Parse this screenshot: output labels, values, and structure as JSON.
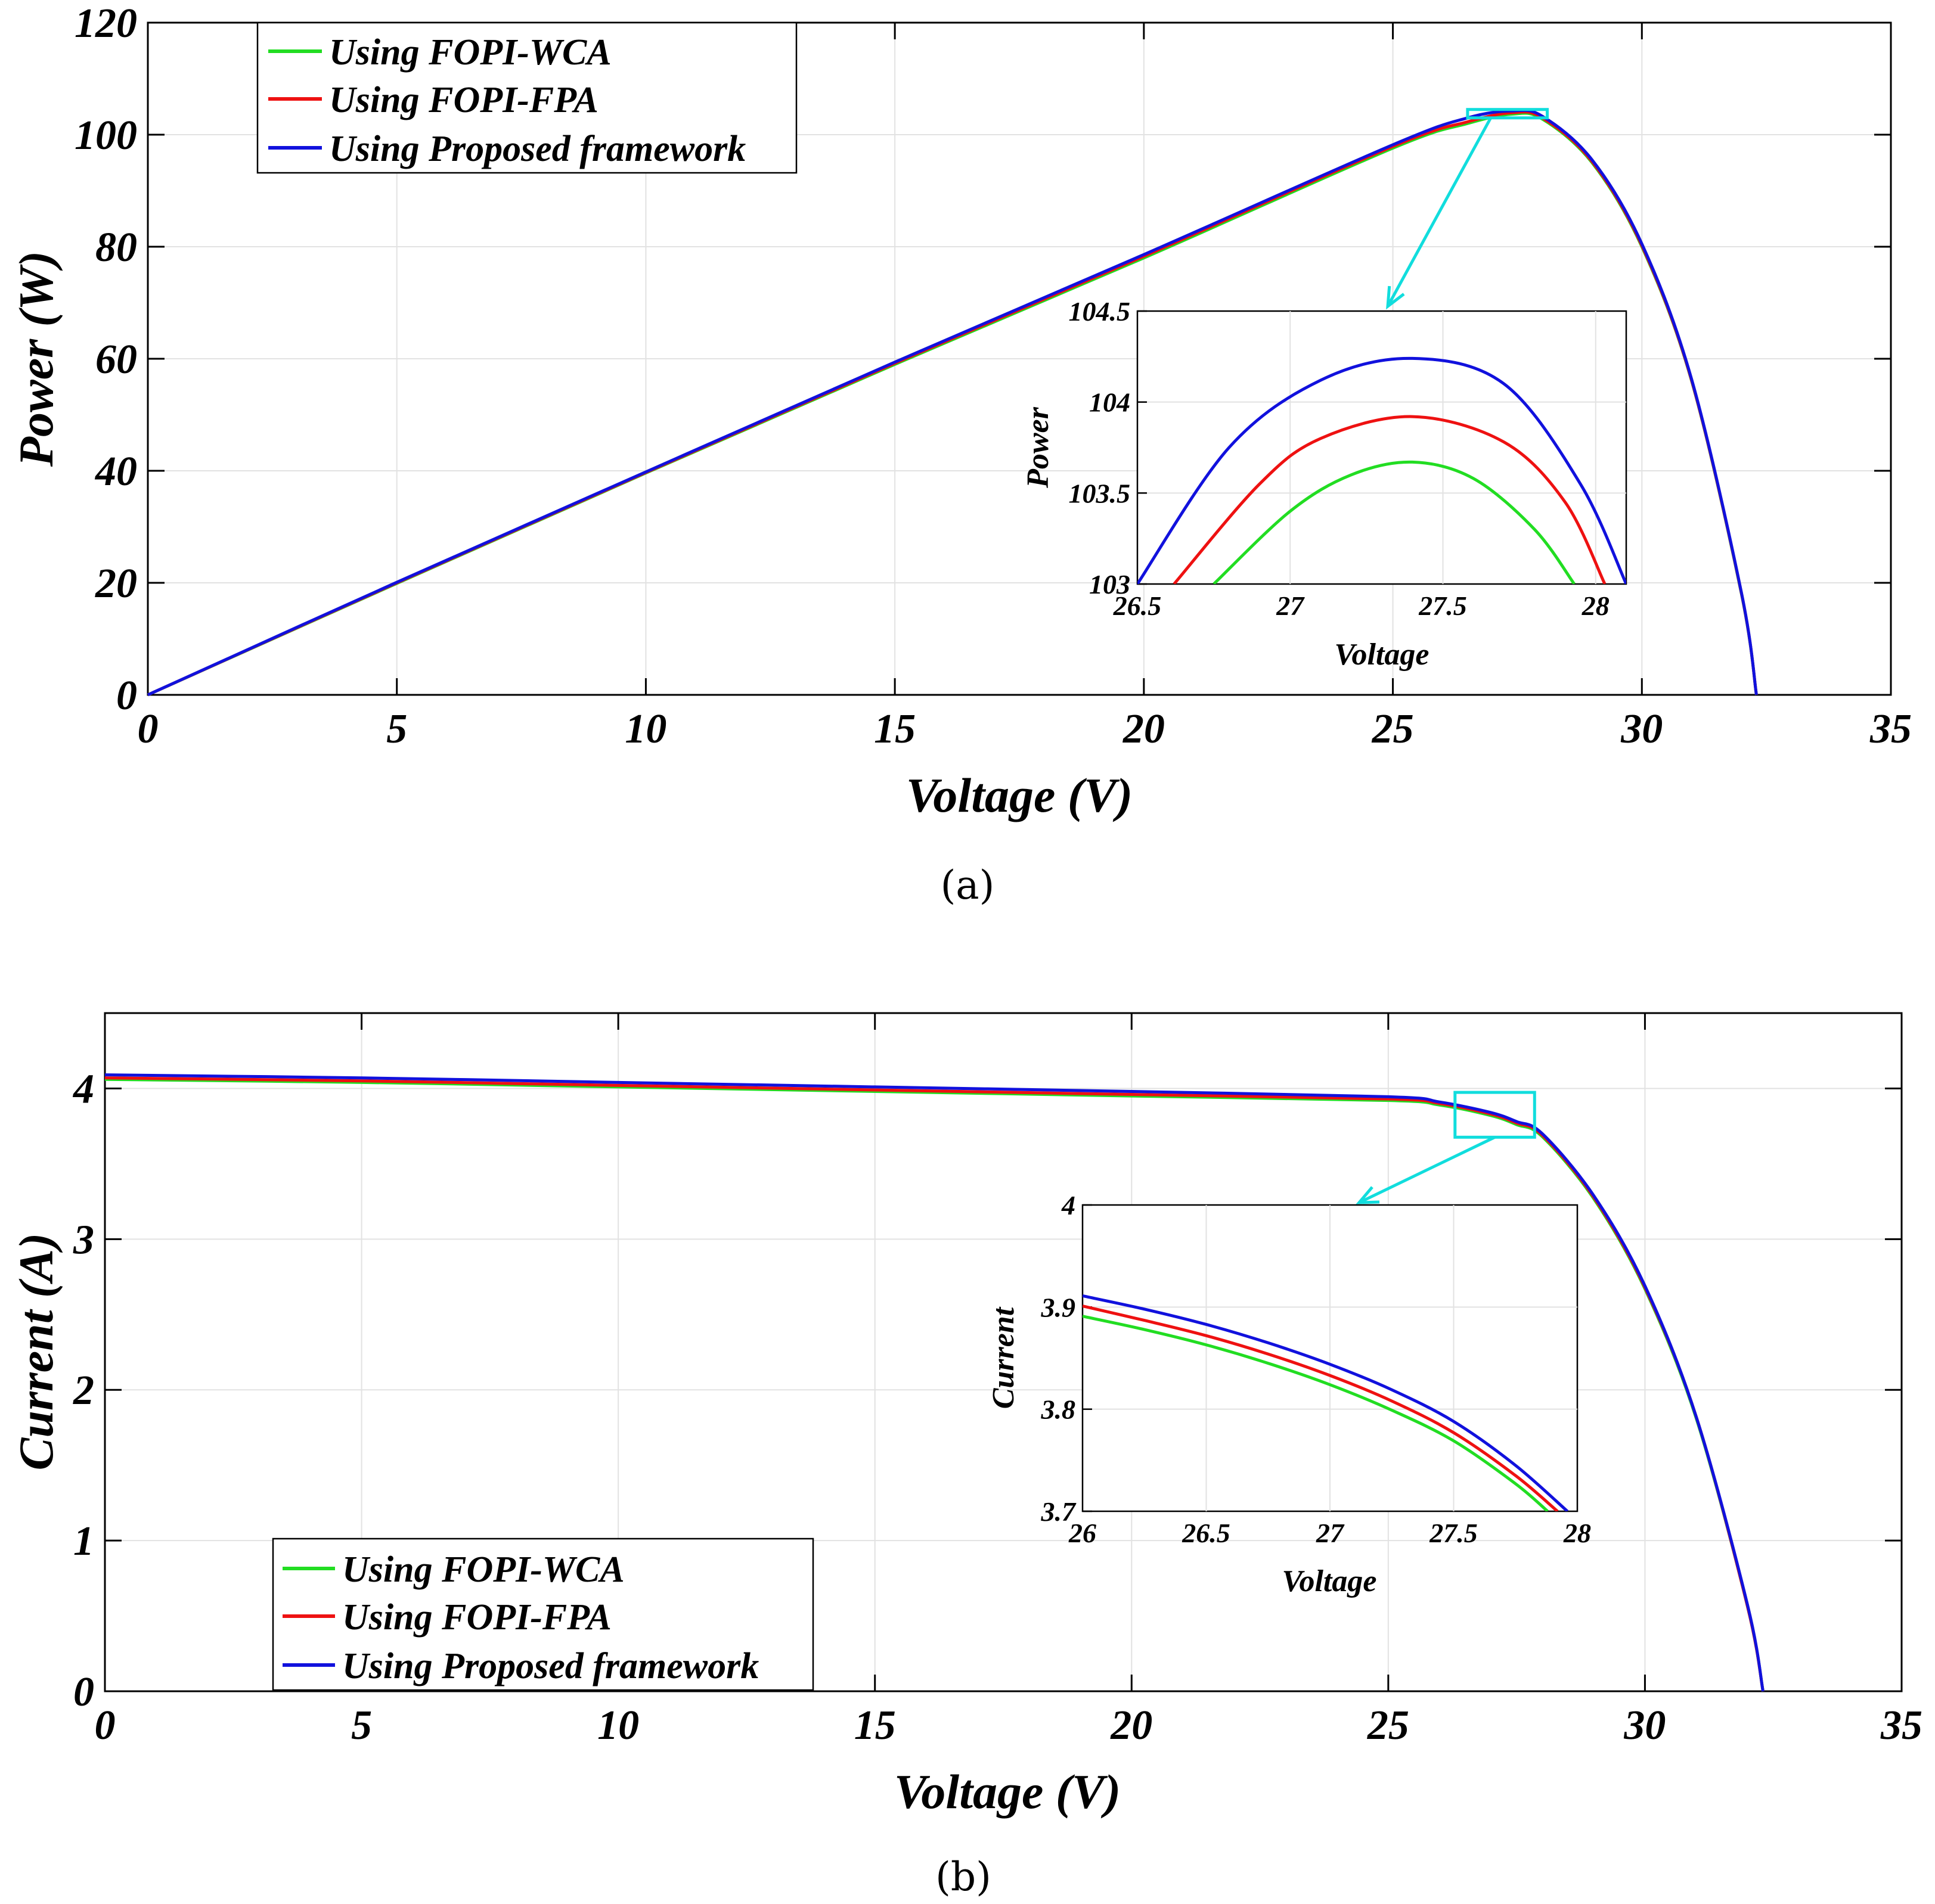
{
  "colors": {
    "FOPI-WCA": "#22dd22",
    "FOPI-FPA": "#ee1111",
    "Proposed": "#1111dd",
    "zoom_box": "#11dddd"
  },
  "chart_data": [
    {
      "panel": "a",
      "caption": "(a)",
      "type": "line",
      "xlabel": "Voltage (V)",
      "ylabel": "Power (W)",
      "xlim": [
        0,
        35
      ],
      "ylim": [
        0,
        120
      ],
      "xticks": [
        0,
        5,
        10,
        15,
        20,
        25,
        30,
        35
      ],
      "yticks": [
        0,
        20,
        40,
        60,
        80,
        100,
        120
      ],
      "grid": true,
      "legend_position": "top-left",
      "legend": [
        "Using FOPI-WCA",
        "Using FOPI-FPA",
        "Using Proposed framework"
      ],
      "series": [
        {
          "name": "Using FOPI-WCA",
          "color_key": "FOPI-WCA",
          "x": [
            0,
            5,
            10,
            15,
            20,
            25,
            26.5,
            27.4,
            28,
            29,
            30,
            31,
            32,
            32.3
          ],
          "y": [
            0,
            19.9,
            39.6,
            59,
            78,
            97.6,
            102,
            103.67,
            102.8,
            95,
            80,
            56,
            18,
            0
          ]
        },
        {
          "name": "Using FOPI-FPA",
          "color_key": "FOPI-FPA",
          "x": [
            0,
            5,
            10,
            15,
            20,
            25,
            26.5,
            27.4,
            28,
            29,
            30,
            31,
            32,
            32.3
          ],
          "y": [
            0,
            20,
            39.7,
            59.2,
            78.3,
            97.9,
            102.3,
            103.92,
            103,
            95.2,
            80.2,
            56.1,
            18.1,
            0
          ]
        },
        {
          "name": "Using Proposed framework",
          "color_key": "Proposed",
          "x": [
            0,
            5,
            10,
            15,
            20,
            25,
            26.5,
            27.4,
            28,
            29,
            30,
            31,
            32,
            32.3
          ],
          "y": [
            0,
            20.1,
            39.8,
            59.4,
            78.6,
            98.2,
            103,
            104.24,
            103.3,
            95.5,
            80.5,
            56.3,
            18.2,
            0
          ]
        }
      ],
      "zoom_box": {
        "x": [
          26.5,
          28.1
        ],
        "y": [
          103,
          104.5
        ]
      },
      "inset": {
        "xlabel": "Voltage",
        "ylabel": "Power",
        "xlim": [
          26.5,
          28.1
        ],
        "ylim": [
          103,
          104.5
        ],
        "xticks": [
          26.5,
          27,
          27.5,
          28
        ],
        "yticks": [
          103,
          103.5,
          104,
          104.5
        ],
        "xtick_labels": [
          "26.5",
          "27",
          "27.5",
          "28"
        ],
        "ytick_labels": [
          "103",
          "103.5",
          "104",
          "104.5"
        ],
        "series": [
          {
            "name": "Using FOPI-WCA",
            "color_key": "FOPI-WCA",
            "x": [
              26.75,
              27.0,
              27.2,
              27.4,
              27.6,
              27.8,
              27.93
            ],
            "y": [
              103.0,
              103.4,
              103.6,
              103.67,
              103.58,
              103.3,
              103.0
            ]
          },
          {
            "name": "Using FOPI-FPA",
            "color_key": "FOPI-FPA",
            "x": [
              26.62,
              26.9,
              27.1,
              27.4,
              27.7,
              27.9,
              28.03
            ],
            "y": [
              103.0,
              103.55,
              103.8,
              103.92,
              103.78,
              103.45,
              103.0
            ]
          },
          {
            "name": "Using Proposed framework",
            "color_key": "Proposed",
            "x": [
              26.5,
              26.8,
              27.1,
              27.4,
              27.7,
              27.95,
              28.1
            ],
            "y": [
              103.0,
              103.75,
              104.12,
              104.24,
              104.1,
              103.55,
              103.0
            ]
          }
        ]
      }
    },
    {
      "panel": "b",
      "caption": "(b)",
      "type": "line",
      "xlabel": "Voltage (V)",
      "ylabel": "Current (A)",
      "xlim": [
        0,
        35
      ],
      "ylim": [
        0,
        4.5
      ],
      "xticks": [
        0,
        5,
        10,
        15,
        20,
        25,
        30,
        35
      ],
      "yticks": [
        0,
        1,
        2,
        3,
        4
      ],
      "grid": true,
      "legend_position": "bottom-left",
      "legend": [
        "Using FOPI-WCA",
        "Using FOPI-FPA",
        "Using Proposed framework"
      ],
      "series": [
        {
          "name": "Using FOPI-WCA",
          "color_key": "FOPI-WCA",
          "x": [
            0,
            5,
            10,
            15,
            20,
            25,
            26,
            27,
            27.5,
            28,
            29,
            30,
            31,
            32,
            32.3
          ],
          "y": [
            4.06,
            4.04,
            4.01,
            3.98,
            3.95,
            3.92,
            3.89,
            3.82,
            3.76,
            3.68,
            3.27,
            2.67,
            1.81,
            0.56,
            0
          ]
        },
        {
          "name": "Using FOPI-FPA",
          "color_key": "FOPI-FPA",
          "x": [
            0,
            5,
            10,
            15,
            20,
            25,
            26,
            27,
            27.5,
            28,
            29,
            30,
            31,
            32,
            32.3
          ],
          "y": [
            4.07,
            4.05,
            4.02,
            3.99,
            3.96,
            3.93,
            3.9,
            3.83,
            3.77,
            3.69,
            3.28,
            2.68,
            1.82,
            0.56,
            0
          ]
        },
        {
          "name": "Using Proposed framework",
          "color_key": "Proposed",
          "x": [
            0,
            5,
            10,
            15,
            20,
            25,
            26,
            27,
            27.5,
            28,
            29,
            30,
            31,
            32,
            32.3
          ],
          "y": [
            4.09,
            4.07,
            4.04,
            4.01,
            3.98,
            3.945,
            3.91,
            3.84,
            3.78,
            3.7,
            3.29,
            2.69,
            1.82,
            0.57,
            0
          ]
        }
      ],
      "zoom_box": {
        "x": [
          26.3,
          27.85
        ],
        "y": [
          3.7,
          3.95
        ]
      },
      "inset": {
        "xlabel": "Voltage",
        "ylabel": "Current",
        "xlim": [
          26,
          28
        ],
        "ylim": [
          3.7,
          4
        ],
        "xticks": [
          26,
          26.5,
          27,
          27.5,
          28
        ],
        "yticks": [
          3.7,
          3.8,
          3.9,
          4
        ],
        "xtick_labels": [
          "26",
          "26.5",
          "27",
          "27.5",
          "28"
        ],
        "ytick_labels": [
          "3.7",
          "3.8",
          "3.9",
          "4"
        ],
        "series": [
          {
            "name": "Using FOPI-WCA",
            "color_key": "FOPI-WCA",
            "x": [
              26,
              26.25,
              26.5,
              26.75,
              27,
              27.25,
              27.5,
              27.75,
              27.88
            ],
            "y": [
              3.891,
              3.878,
              3.863,
              3.845,
              3.824,
              3.799,
              3.769,
              3.727,
              3.7
            ]
          },
          {
            "name": "Using FOPI-FPA",
            "color_key": "FOPI-FPA",
            "x": [
              26,
              26.25,
              26.5,
              26.75,
              27,
              27.25,
              27.5,
              27.75,
              27.92
            ],
            "y": [
              3.901,
              3.887,
              3.872,
              3.854,
              3.833,
              3.808,
              3.777,
              3.735,
              3.7
            ]
          },
          {
            "name": "Using Proposed framework",
            "color_key": "Proposed",
            "x": [
              26,
              26.25,
              26.5,
              26.75,
              27,
              27.25,
              27.5,
              27.75,
              27.96
            ],
            "y": [
              3.911,
              3.898,
              3.883,
              3.865,
              3.844,
              3.819,
              3.788,
              3.745,
              3.7
            ]
          }
        ]
      }
    }
  ]
}
